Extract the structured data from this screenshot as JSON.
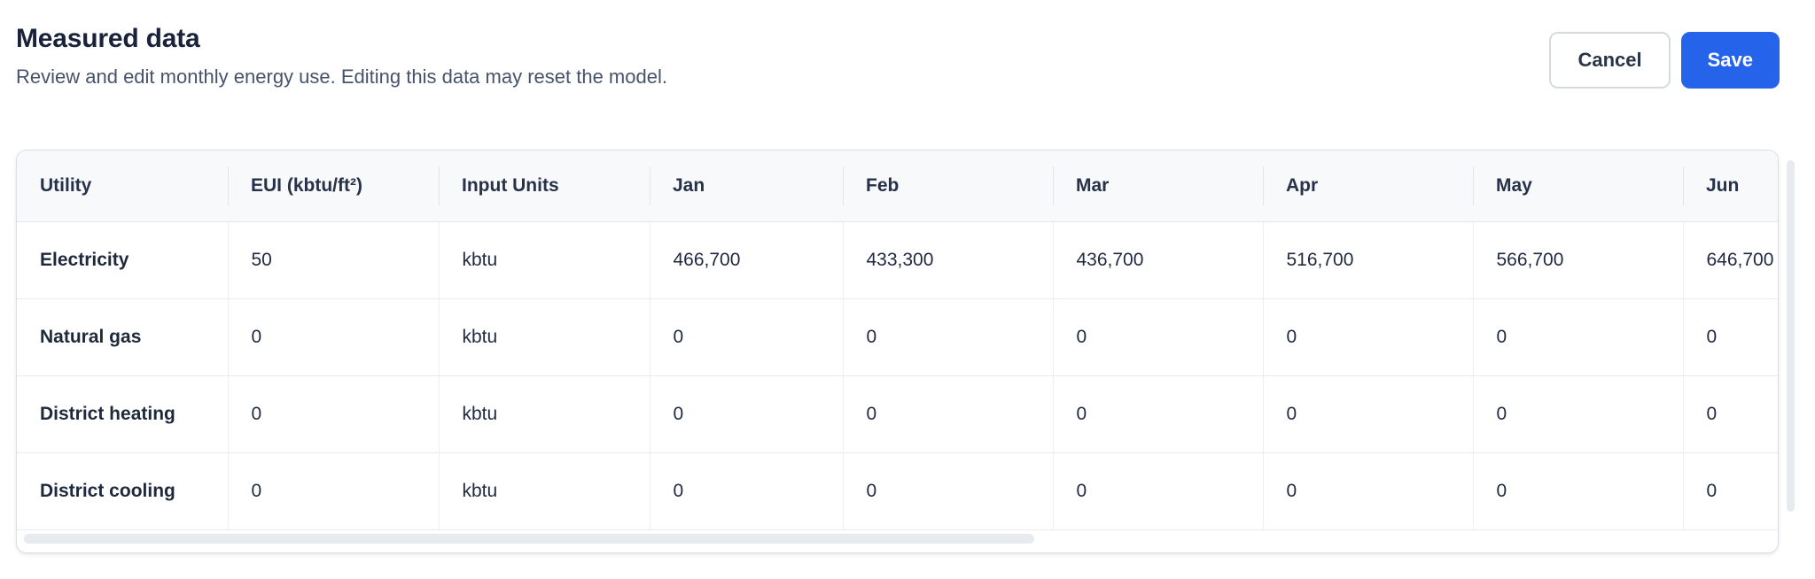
{
  "header": {
    "title": "Measured data",
    "subtitle": "Review and edit monthly energy use. Editing this data may reset the model.",
    "cancel_label": "Cancel",
    "save_label": "Save"
  },
  "table": {
    "headers": [
      "Utility",
      "EUI (kbtu/ft²)",
      "Input Units",
      "Jan",
      "Feb",
      "Mar",
      "Apr",
      "May",
      "Jun"
    ],
    "rows": [
      {
        "utility": "Electricity",
        "eui": "50",
        "units": "kbtu",
        "months": [
          "466,700",
          "433,300",
          "436,700",
          "516,700",
          "566,700",
          "646,700"
        ]
      },
      {
        "utility": "Natural gas",
        "eui": "0",
        "units": "kbtu",
        "months": [
          "0",
          "0",
          "0",
          "0",
          "0",
          "0"
        ]
      },
      {
        "utility": "District heating",
        "eui": "0",
        "units": "kbtu",
        "months": [
          "0",
          "0",
          "0",
          "0",
          "0",
          "0"
        ]
      },
      {
        "utility": "District cooling",
        "eui": "0",
        "units": "kbtu",
        "months": [
          "0",
          "0",
          "0",
          "0",
          "0",
          "0"
        ]
      }
    ]
  },
  "colors": {
    "save_button": "#2563eb",
    "title_text": "#18223a",
    "subtitle_text": "#47536b",
    "header_row_bg": "#f8f9fb",
    "border": "#e7eaee",
    "scrollbar_thumb": "#e7eaef"
  }
}
